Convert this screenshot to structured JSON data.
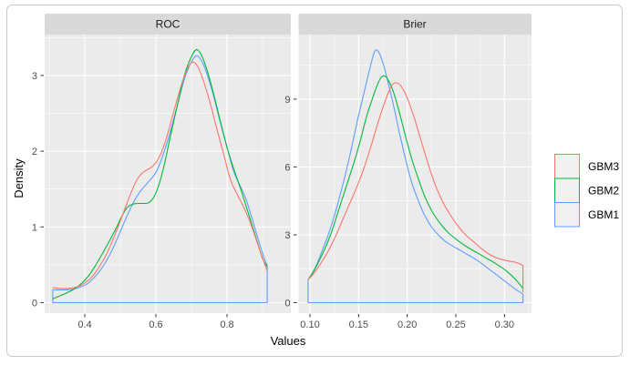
{
  "figure": {
    "background": "#ffffff",
    "border_color": "#c9c9c9"
  },
  "theme": {
    "panel_bg": "#ebebeb",
    "strip_bg": "#d9d9d9",
    "grid_major": "#ffffff",
    "grid_minor": "#f8f8f8",
    "tick_color": "#333333",
    "tick_label_color": "#4d4d4d",
    "legend_key_bg": "#f1f1f1"
  },
  "chart_data": {
    "type": "line",
    "subtype": "faceted-density-curves",
    "title": "",
    "xlabel": "Values",
    "ylabel": "Density",
    "legend": {
      "position": "right",
      "entries": [
        {
          "label": "GBM3",
          "color": "#F8766D"
        },
        {
          "label": "GBM2",
          "color": "#00BA38"
        },
        {
          "label": "GBM1",
          "color": "#619CFF"
        }
      ]
    },
    "panels": [
      {
        "title": "ROC",
        "xlim": [
          0.287,
          0.979
        ],
        "ylim": [
          0,
          3.54
        ],
        "x_ticks": [
          0.4,
          0.6,
          0.8
        ],
        "x_tick_labels": [
          "0.4",
          "0.6",
          "0.8"
        ],
        "x_minor": [
          0.3,
          0.5,
          0.7,
          0.9
        ],
        "y_ticks": [
          0,
          1,
          2,
          3
        ],
        "y_tick_labels": [
          "0",
          "1",
          "2",
          "3"
        ],
        "y_minor": [
          0.5,
          1.5,
          2.5,
          3.5
        ],
        "series": [
          {
            "name": "GBM1",
            "color": "#619CFF",
            "closed": true,
            "points": [
              [
                0.31,
                0.17
              ],
              [
                0.33,
                0.17
              ],
              [
                0.35,
                0.17
              ],
              [
                0.37,
                0.18
              ],
              [
                0.39,
                0.21
              ],
              [
                0.41,
                0.26
              ],
              [
                0.43,
                0.35
              ],
              [
                0.45,
                0.47
              ],
              [
                0.47,
                0.63
              ],
              [
                0.49,
                0.83
              ],
              [
                0.51,
                1.05
              ],
              [
                0.53,
                1.26
              ],
              [
                0.55,
                1.43
              ],
              [
                0.565,
                1.52
              ],
              [
                0.58,
                1.6
              ],
              [
                0.6,
                1.72
              ],
              [
                0.62,
                1.95
              ],
              [
                0.64,
                2.25
              ],
              [
                0.66,
                2.6
              ],
              [
                0.68,
                2.95
              ],
              [
                0.7,
                3.18
              ],
              [
                0.715,
                3.26
              ],
              [
                0.73,
                3.18
              ],
              [
                0.745,
                3.0
              ],
              [
                0.76,
                2.77
              ],
              [
                0.78,
                2.4
              ],
              [
                0.8,
                2.05
              ],
              [
                0.82,
                1.72
              ],
              [
                0.85,
                1.41
              ],
              [
                0.87,
                1.12
              ],
              [
                0.89,
                0.8
              ],
              [
                0.905,
                0.58
              ],
              [
                0.913,
                0.49
              ]
            ]
          },
          {
            "name": "GBM2",
            "color": "#00BA38",
            "closed": false,
            "points": [
              [
                0.31,
                0.05
              ],
              [
                0.33,
                0.09
              ],
              [
                0.35,
                0.13
              ],
              [
                0.37,
                0.18
              ],
              [
                0.39,
                0.25
              ],
              [
                0.41,
                0.35
              ],
              [
                0.43,
                0.49
              ],
              [
                0.45,
                0.65
              ],
              [
                0.47,
                0.82
              ],
              [
                0.49,
                1.0
              ],
              [
                0.505,
                1.15
              ],
              [
                0.52,
                1.26
              ],
              [
                0.535,
                1.3
              ],
              [
                0.55,
                1.31
              ],
              [
                0.565,
                1.31
              ],
              [
                0.58,
                1.32
              ],
              [
                0.595,
                1.4
              ],
              [
                0.61,
                1.58
              ],
              [
                0.625,
                1.85
              ],
              [
                0.64,
                2.18
              ],
              [
                0.66,
                2.6
              ],
              [
                0.68,
                3.0
              ],
              [
                0.7,
                3.25
              ],
              [
                0.715,
                3.34
              ],
              [
                0.73,
                3.25
              ],
              [
                0.745,
                3.05
              ],
              [
                0.76,
                2.8
              ],
              [
                0.78,
                2.42
              ],
              [
                0.8,
                2.05
              ],
              [
                0.82,
                1.75
              ],
              [
                0.84,
                1.48
              ],
              [
                0.86,
                1.18
              ],
              [
                0.88,
                0.88
              ],
              [
                0.9,
                0.58
              ],
              [
                0.913,
                0.48
              ]
            ]
          },
          {
            "name": "GBM3",
            "color": "#F8766D",
            "closed": false,
            "points": [
              [
                0.31,
                0.2
              ],
              [
                0.325,
                0.19
              ],
              [
                0.34,
                0.185
              ],
              [
                0.36,
                0.19
              ],
              [
                0.38,
                0.21
              ],
              [
                0.4,
                0.26
              ],
              [
                0.42,
                0.34
              ],
              [
                0.44,
                0.47
              ],
              [
                0.46,
                0.63
              ],
              [
                0.48,
                0.84
              ],
              [
                0.5,
                1.08
              ],
              [
                0.52,
                1.33
              ],
              [
                0.54,
                1.56
              ],
              [
                0.555,
                1.68
              ],
              [
                0.57,
                1.74
              ],
              [
                0.585,
                1.78
              ],
              [
                0.6,
                1.85
              ],
              [
                0.615,
                1.98
              ],
              [
                0.63,
                2.18
              ],
              [
                0.65,
                2.52
              ],
              [
                0.67,
                2.85
              ],
              [
                0.685,
                3.05
              ],
              [
                0.7,
                3.17
              ],
              [
                0.715,
                3.14
              ],
              [
                0.73,
                2.98
              ],
              [
                0.75,
                2.68
              ],
              [
                0.77,
                2.32
              ],
              [
                0.79,
                1.97
              ],
              [
                0.81,
                1.62
              ],
              [
                0.83,
                1.42
              ],
              [
                0.85,
                1.23
              ],
              [
                0.87,
                1.0
              ],
              [
                0.89,
                0.72
              ],
              [
                0.905,
                0.52
              ],
              [
                0.913,
                0.42
              ]
            ]
          }
        ]
      },
      {
        "title": "Brier",
        "xlim": [
          0.088,
          0.328
        ],
        "ylim": [
          0,
          11.85
        ],
        "x_ticks": [
          0.1,
          0.15,
          0.2,
          0.25,
          0.3
        ],
        "x_tick_labels": [
          "0.10",
          "0.15",
          "0.20",
          "0.25",
          "0.30"
        ],
        "x_minor": [
          0.125,
          0.175,
          0.225,
          0.275,
          0.325
        ],
        "y_ticks": [
          0,
          3,
          6,
          9
        ],
        "y_tick_labels": [
          "0",
          "3",
          "6",
          "9"
        ],
        "y_minor": [
          1.5,
          4.5,
          7.5,
          10.5
        ],
        "series": [
          {
            "name": "GBM1",
            "color": "#619CFF",
            "closed": true,
            "points": [
              [
                0.098,
                1.0
              ],
              [
                0.103,
                1.35
              ],
              [
                0.108,
                1.8
              ],
              [
                0.113,
                2.35
              ],
              [
                0.118,
                2.9
              ],
              [
                0.124,
                3.7
              ],
              [
                0.13,
                4.6
              ],
              [
                0.136,
                5.6
              ],
              [
                0.142,
                6.7
              ],
              [
                0.148,
                7.9
              ],
              [
                0.154,
                9.0
              ],
              [
                0.159,
                9.9
              ],
              [
                0.163,
                10.6
              ],
              [
                0.167,
                11.15
              ],
              [
                0.171,
                11.05
              ],
              [
                0.175,
                10.6
              ],
              [
                0.18,
                9.8
              ],
              [
                0.186,
                8.7
              ],
              [
                0.192,
                7.5
              ],
              [
                0.198,
                6.4
              ],
              [
                0.204,
                5.4
              ],
              [
                0.211,
                4.55
              ],
              [
                0.218,
                3.85
              ],
              [
                0.225,
                3.35
              ],
              [
                0.233,
                2.95
              ],
              [
                0.241,
                2.65
              ],
              [
                0.251,
                2.4
              ],
              [
                0.261,
                2.15
              ],
              [
                0.271,
                1.9
              ],
              [
                0.281,
                1.58
              ],
              [
                0.291,
                1.26
              ],
              [
                0.301,
                0.93
              ],
              [
                0.311,
                0.6
              ],
              [
                0.319,
                0.38
              ]
            ]
          },
          {
            "name": "GBM2",
            "color": "#00BA38",
            "closed": false,
            "points": [
              [
                0.098,
                1.0
              ],
              [
                0.104,
                1.4
              ],
              [
                0.11,
                1.9
              ],
              [
                0.116,
                2.45
              ],
              [
                0.122,
                3.1
              ],
              [
                0.128,
                3.9
              ],
              [
                0.134,
                4.7
              ],
              [
                0.14,
                5.5
              ],
              [
                0.146,
                6.3
              ],
              [
                0.152,
                7.2
              ],
              [
                0.158,
                8.2
              ],
              [
                0.164,
                9.0
              ],
              [
                0.169,
                9.6
              ],
              [
                0.173,
                9.95
              ],
              [
                0.177,
                10.02
              ],
              [
                0.181,
                9.8
              ],
              [
                0.186,
                9.3
              ],
              [
                0.192,
                8.4
              ],
              [
                0.198,
                7.4
              ],
              [
                0.205,
                6.3
              ],
              [
                0.212,
                5.4
              ],
              [
                0.219,
                4.6
              ],
              [
                0.226,
                4.0
              ],
              [
                0.234,
                3.5
              ],
              [
                0.242,
                3.1
              ],
              [
                0.252,
                2.75
              ],
              [
                0.262,
                2.45
              ],
              [
                0.272,
                2.2
              ],
              [
                0.282,
                1.95
              ],
              [
                0.292,
                1.7
              ],
              [
                0.302,
                1.4
              ],
              [
                0.312,
                1.0
              ],
              [
                0.319,
                0.62
              ]
            ]
          },
          {
            "name": "GBM3",
            "color": "#F8766D",
            "closed": false,
            "end_drop": 0.45,
            "points": [
              [
                0.098,
                1.0
              ],
              [
                0.105,
                1.35
              ],
              [
                0.112,
                1.8
              ],
              [
                0.119,
                2.3
              ],
              [
                0.126,
                2.9
              ],
              [
                0.133,
                3.6
              ],
              [
                0.14,
                4.3
              ],
              [
                0.148,
                5.1
              ],
              [
                0.156,
                6.0
              ],
              [
                0.164,
                7.1
              ],
              [
                0.171,
                8.1
              ],
              [
                0.178,
                9.0
              ],
              [
                0.184,
                9.6
              ],
              [
                0.189,
                9.72
              ],
              [
                0.194,
                9.55
              ],
              [
                0.2,
                9.05
              ],
              [
                0.207,
                8.2
              ],
              [
                0.214,
                7.2
              ],
              [
                0.221,
                6.2
              ],
              [
                0.228,
                5.3
              ],
              [
                0.236,
                4.5
              ],
              [
                0.244,
                3.9
              ],
              [
                0.252,
                3.4
              ],
              [
                0.26,
                3.0
              ],
              [
                0.268,
                2.7
              ],
              [
                0.276,
                2.4
              ],
              [
                0.284,
                2.15
              ],
              [
                0.292,
                1.98
              ],
              [
                0.302,
                1.86
              ],
              [
                0.312,
                1.78
              ],
              [
                0.319,
                1.65
              ]
            ]
          }
        ]
      }
    ]
  }
}
